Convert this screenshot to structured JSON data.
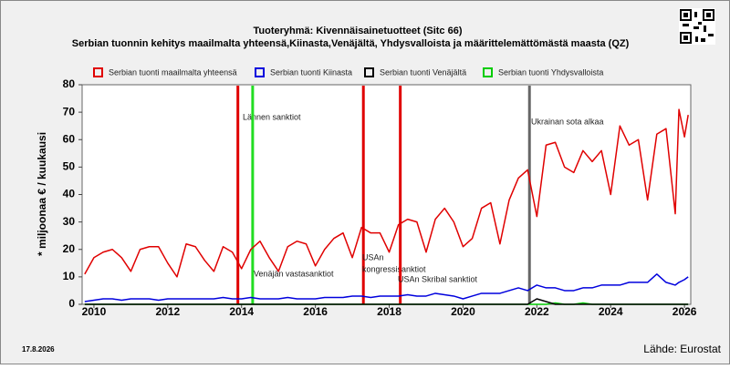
{
  "chart_data": {
    "type": "line",
    "title": "Tuoteryhmä: Kivennäisainetuotteet (Sitc 66)",
    "subtitle": "Serbian tuonnin kehitys maailmalta yhteensä,Kiinasta,Venäjältä, Yhdysvalloista ja määrittelemättömästä maasta (QZ)",
    "y_label": "* miljoonaa € / kuukausi",
    "date": "17.8.2026",
    "source": "Lähde: Eurostat",
    "xlim": [
      2009.68,
      2026.17
    ],
    "xticks": [
      2010,
      2012,
      2014,
      2016,
      2018,
      2020,
      2022,
      2024,
      2026
    ],
    "ylim": [
      0,
      80
    ],
    "yticks": [
      0,
      10,
      20,
      30,
      40,
      50,
      60,
      70,
      80
    ],
    "x": [
      2009.75,
      2010,
      2010.25,
      2010.5,
      2010.75,
      2011,
      2011.25,
      2011.5,
      2011.75,
      2012,
      2012.25,
      2012.5,
      2012.75,
      2013,
      2013.25,
      2013.5,
      2013.75,
      2014,
      2014.25,
      2014.5,
      2014.75,
      2015,
      2015.25,
      2015.5,
      2015.75,
      2016,
      2016.25,
      2016.5,
      2016.75,
      2017,
      2017.25,
      2017.5,
      2017.75,
      2018,
      2018.25,
      2018.5,
      2018.75,
      2019,
      2019.25,
      2019.5,
      2019.75,
      2020,
      2020.25,
      2020.5,
      2020.75,
      2021,
      2021.25,
      2021.5,
      2021.75,
      2022,
      2022.25,
      2022.5,
      2022.75,
      2023,
      2023.25,
      2023.5,
      2023.75,
      2024,
      2024.25,
      2024.5,
      2024.75,
      2025,
      2025.25,
      2025.5,
      2025.75,
      2025.85,
      2026,
      2026.1
    ],
    "series": [
      {
        "name": "Serbian tuonti maailmalta yhteensä",
        "color": "#e00000",
        "values": [
          11,
          17,
          19,
          20,
          17,
          12,
          20,
          21,
          21,
          15,
          10,
          22,
          21,
          16,
          12,
          21,
          19,
          13,
          20,
          23,
          17,
          12,
          21,
          23,
          22,
          14,
          20,
          24,
          26,
          17,
          28,
          26,
          26,
          19,
          29,
          31,
          30,
          19,
          31,
          35,
          30,
          21,
          24,
          35,
          37,
          22,
          38,
          46,
          49,
          32,
          58,
          59,
          50,
          48,
          56,
          52,
          56,
          40,
          65,
          58,
          60,
          38,
          62,
          64,
          33,
          71,
          61,
          69
        ]
      },
      {
        "name": "Serbian tuonti Kiinasta",
        "color": "#0000dd",
        "values": [
          1,
          1.5,
          2,
          2,
          1.5,
          2,
          2,
          2,
          1.5,
          2,
          2,
          2,
          2,
          2,
          2,
          2.5,
          2,
          2,
          2.5,
          2,
          2,
          2,
          2.5,
          2,
          2,
          2,
          2.5,
          2.5,
          2.5,
          3,
          3,
          2.5,
          3,
          3,
          3,
          3.5,
          3,
          3,
          4,
          3.5,
          3,
          2,
          3,
          4,
          4,
          4,
          5,
          6,
          5,
          7,
          6,
          6,
          5,
          5,
          6,
          6,
          7,
          7,
          7,
          8,
          8,
          8,
          11,
          8,
          7,
          8,
          9,
          10
        ]
      },
      {
        "name": "Serbian tuonti Venäjältä",
        "color": "#000000",
        "values": [
          0,
          0,
          0,
          0,
          0,
          0,
          0,
          0,
          0,
          0,
          0,
          0,
          0,
          0,
          0,
          0,
          0,
          0,
          0,
          0,
          0,
          0,
          0,
          0,
          0,
          0,
          0,
          0,
          0,
          0,
          0,
          0,
          0,
          0,
          0,
          0,
          0,
          0,
          0,
          0,
          0,
          0,
          0,
          0,
          0,
          0,
          0,
          0,
          0,
          2,
          1,
          0,
          0,
          0,
          0,
          0,
          0,
          0,
          0,
          0,
          0,
          0,
          0,
          0,
          0,
          0,
          0,
          0
        ]
      },
      {
        "name": "Serbian tuonti Yhdysvalloista",
        "color": "#00cc00",
        "values": [
          0,
          0,
          0,
          0,
          0,
          0,
          0,
          0,
          0,
          0,
          0,
          0,
          0,
          0,
          0,
          0,
          0,
          0,
          0,
          0,
          0,
          0,
          0,
          0,
          0,
          0,
          0,
          0,
          0,
          0,
          0,
          0,
          0,
          0,
          0,
          0,
          0,
          0,
          0,
          0,
          0,
          0,
          0,
          0,
          0,
          0,
          0,
          0,
          0,
          0,
          0,
          0.5,
          0,
          0,
          0.5,
          0,
          0,
          0,
          0,
          0,
          0,
          0,
          0,
          0,
          0,
          0,
          0,
          0
        ]
      }
    ],
    "events": [
      {
        "x": 2013.9,
        "color": "#e00000",
        "label": [
          "Lännen sanktiot"
        ]
      },
      {
        "x": 2014.3,
        "color": "#22dd22",
        "label": [
          "Venäjän vastasanktiot"
        ]
      },
      {
        "x": 2017.3,
        "color": "#e00000",
        "label": [
          "USAn",
          "kongressisanktiot"
        ]
      },
      {
        "x": 2018.3,
        "color": "#e00000",
        "label": [
          "USAn Skribal sanktiot"
        ]
      },
      {
        "x": 2021.8,
        "color": "#666666",
        "label": [
          "Ukrainan sota alkaa"
        ]
      }
    ]
  }
}
